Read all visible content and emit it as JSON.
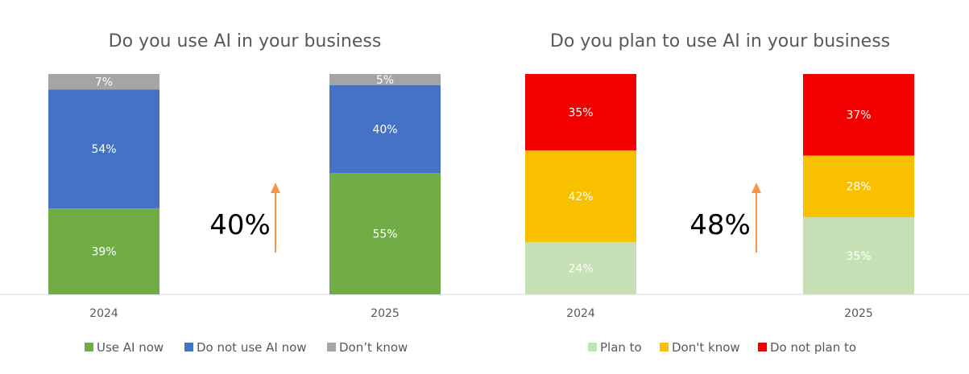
{
  "chart_data": [
    {
      "type": "bar",
      "stacked": true,
      "title": "Do you use AI in your business",
      "categories": [
        "2024",
        "2025"
      ],
      "series": [
        {
          "name": "Use AI now",
          "values": [
            39,
            55
          ],
          "labels": [
            "39%",
            "55%"
          ],
          "color": "#70AD47"
        },
        {
          "name": "Do not use AI now",
          "values": [
            54,
            40
          ],
          "labels": [
            "54%",
            "40%"
          ],
          "color": "#4472C4"
        },
        {
          "name": "Don't know",
          "values": [
            7,
            5
          ],
          "labels": [
            "7%",
            "5%"
          ],
          "color": "#A5A5A5"
        }
      ],
      "legend_labels": [
        "Use AI now",
        "Do not use AI now",
        "Don’t know"
      ],
      "annotation": "40%",
      "ylim": [
        0,
        100
      ],
      "legend_position": "bottom",
      "grid": false
    },
    {
      "type": "bar",
      "stacked": true,
      "title": "Do you plan to use AI in your business",
      "categories": [
        "2024",
        "2025"
      ],
      "series": [
        {
          "name": "Plan to",
          "values": [
            24,
            35
          ],
          "labels": [
            "24%",
            "35%"
          ],
          "color": "#C5E0B4"
        },
        {
          "name": "Don't know",
          "values": [
            42,
            28
          ],
          "labels": [
            "42%",
            "28%"
          ],
          "color": "#F9C000"
        },
        {
          "name": "Do not plan to",
          "values": [
            35,
            37
          ],
          "labels": [
            "35%",
            "37%"
          ],
          "color": "#F20000"
        }
      ],
      "legend_labels": [
        "Plan to",
        "Don't know",
        "Do not plan to"
      ],
      "annotation": "48%",
      "ylim": [
        0,
        100
      ],
      "legend_position": "bottom",
      "grid": false
    }
  ],
  "colors": {
    "arrow": "#F4964A",
    "axis": "#D9D9D9",
    "text": "#595959"
  }
}
